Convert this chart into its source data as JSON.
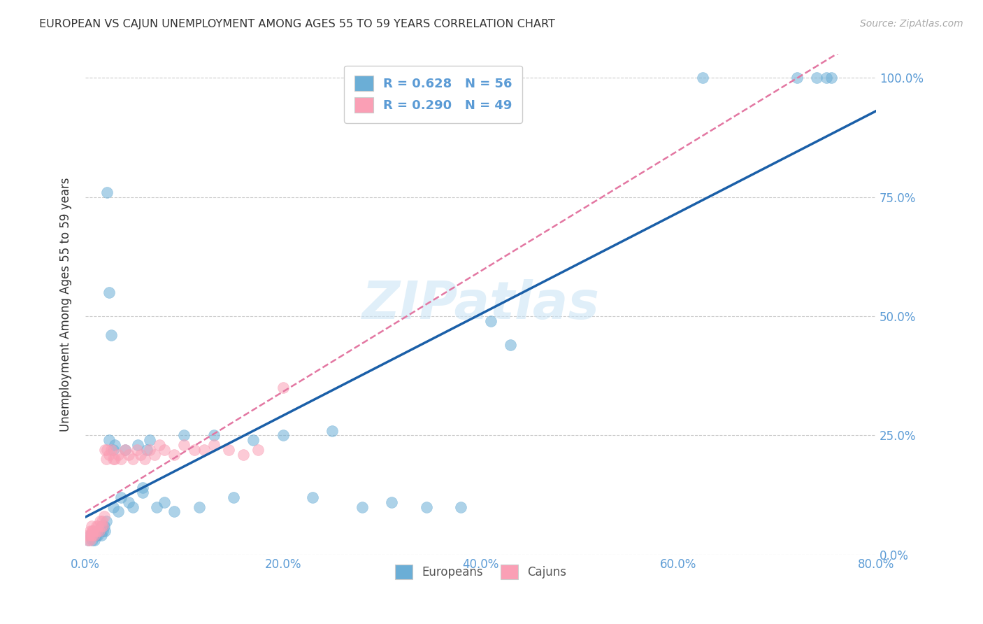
{
  "title": "EUROPEAN VS CAJUN UNEMPLOYMENT AMONG AGES 55 TO 59 YEARS CORRELATION CHART",
  "source": "Source: ZipAtlas.com",
  "ylabel": "Unemployment Among Ages 55 to 59 years",
  "watermark": "ZIPatlas",
  "blue_color": "#6baed6",
  "pink_color": "#fa9fb5",
  "line_blue": "#1a5fa8",
  "line_pink": "#e377a2",
  "axis_color": "#5b9bd5",
  "background_color": "#ffffff",
  "xlim": [
    0.0,
    0.8
  ],
  "ylim": [
    0.0,
    1.05
  ],
  "europeans_x": [
    0.003,
    0.005,
    0.007,
    0.008,
    0.009,
    0.01,
    0.011,
    0.012,
    0.013,
    0.014,
    0.015,
    0.016,
    0.017,
    0.018,
    0.019,
    0.02,
    0.021,
    0.022,
    0.024,
    0.026,
    0.028,
    0.03,
    0.033,
    0.036,
    0.04,
    0.044,
    0.048,
    0.053,
    0.058,
    0.065,
    0.072,
    0.08,
    0.09,
    0.1,
    0.115,
    0.13,
    0.15,
    0.17,
    0.2,
    0.23,
    0.25,
    0.28,
    0.31,
    0.345,
    0.38,
    0.41,
    0.43,
    0.625,
    0.72,
    0.74,
    0.75,
    0.755,
    0.058,
    0.062,
    0.024,
    0.028
  ],
  "europeans_y": [
    0.03,
    0.04,
    0.03,
    0.04,
    0.03,
    0.04,
    0.04,
    0.05,
    0.04,
    0.05,
    0.05,
    0.04,
    0.06,
    0.05,
    0.06,
    0.05,
    0.07,
    0.76,
    0.55,
    0.46,
    0.1,
    0.23,
    0.09,
    0.12,
    0.22,
    0.11,
    0.1,
    0.23,
    0.13,
    0.24,
    0.1,
    0.11,
    0.09,
    0.25,
    0.1,
    0.25,
    0.12,
    0.24,
    0.25,
    0.12,
    0.26,
    0.1,
    0.11,
    0.1,
    0.1,
    0.49,
    0.44,
    1.0,
    1.0,
    1.0,
    1.0,
    1.0,
    0.14,
    0.22,
    0.24,
    0.22
  ],
  "cajuns_x": [
    0.002,
    0.003,
    0.004,
    0.005,
    0.005,
    0.006,
    0.006,
    0.007,
    0.007,
    0.008,
    0.009,
    0.01,
    0.011,
    0.012,
    0.013,
    0.014,
    0.015,
    0.016,
    0.017,
    0.018,
    0.019,
    0.02,
    0.021,
    0.022,
    0.024,
    0.026,
    0.028,
    0.03,
    0.033,
    0.036,
    0.04,
    0.044,
    0.048,
    0.052,
    0.056,
    0.06,
    0.065,
    0.07,
    0.075,
    0.08,
    0.09,
    0.1,
    0.11,
    0.12,
    0.13,
    0.145,
    0.16,
    0.175,
    0.2
  ],
  "cajuns_y": [
    0.04,
    0.03,
    0.04,
    0.05,
    0.03,
    0.04,
    0.06,
    0.05,
    0.04,
    0.05,
    0.04,
    0.05,
    0.06,
    0.05,
    0.06,
    0.05,
    0.07,
    0.06,
    0.07,
    0.06,
    0.08,
    0.22,
    0.2,
    0.22,
    0.21,
    0.22,
    0.2,
    0.2,
    0.21,
    0.2,
    0.22,
    0.21,
    0.2,
    0.22,
    0.21,
    0.2,
    0.22,
    0.21,
    0.23,
    0.22,
    0.21,
    0.23,
    0.22,
    0.22,
    0.23,
    0.22,
    0.21,
    0.22,
    0.35
  ],
  "x_ticks": [
    0.0,
    0.2,
    0.4,
    0.6,
    0.8
  ],
  "y_ticks": [
    0.0,
    0.25,
    0.5,
    0.75,
    1.0
  ]
}
